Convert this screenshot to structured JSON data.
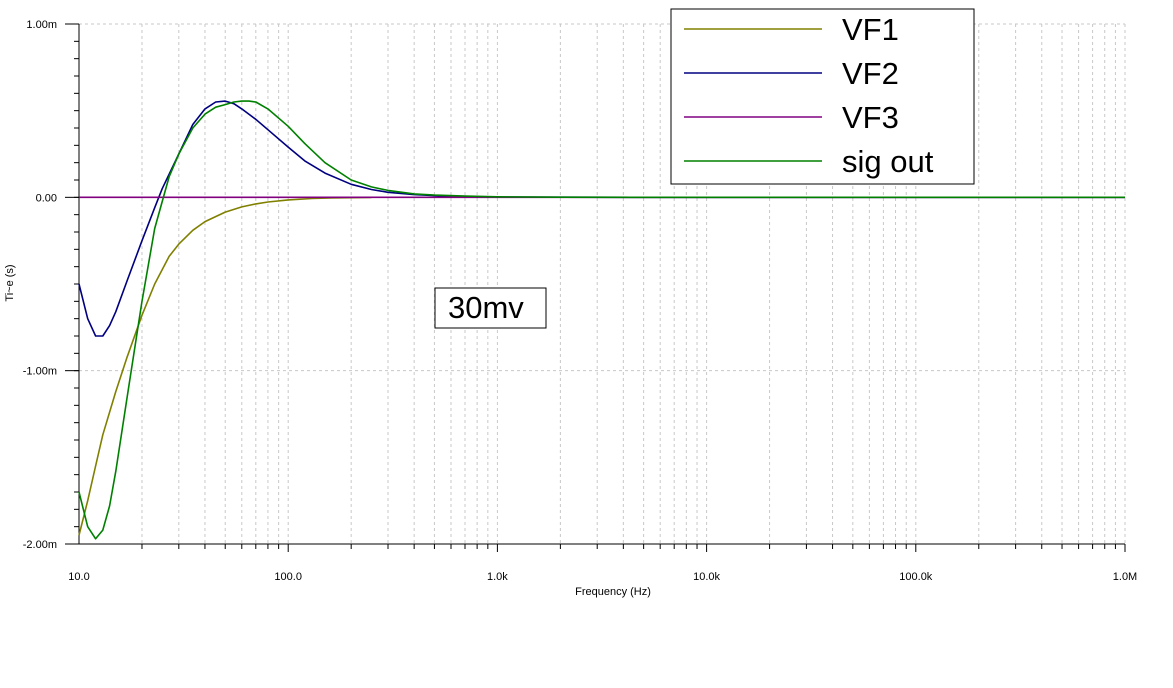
{
  "chart_data": {
    "type": "line",
    "title": "",
    "xlabel": "Frequency (Hz)",
    "ylabel": "Ti~e (s)",
    "xscale": "log",
    "xlim": [
      10,
      1000000
    ],
    "ylim": [
      -0.002,
      0.001
    ],
    "x_tick_labels": [
      "10.0",
      "100.0",
      "1.0k",
      "10.0k",
      "100.0k",
      "1.0M"
    ],
    "y_tick_labels": [
      "1.00m",
      "0.00",
      "-1.00m",
      "-2.00m"
    ],
    "grid": true,
    "legend_position": "top-right",
    "annotation": "30mv",
    "series": [
      {
        "name": "VF1",
        "color": "#808000",
        "x": [
          10,
          11,
          12,
          13,
          15,
          17,
          20,
          23,
          27,
          30,
          35,
          40,
          50,
          60,
          70,
          80,
          100,
          130,
          160,
          200,
          250
        ],
        "y": [
          -0.00195,
          -0.00175,
          -0.00155,
          -0.00137,
          -0.00112,
          -0.00092,
          -0.00068,
          -0.0005,
          -0.00034,
          -0.00027,
          -0.00019,
          -0.00014,
          -8.5e-05,
          -5.5e-05,
          -3.8e-05,
          -2.7e-05,
          -1.5e-05,
          -7e-06,
          -4e-06,
          -2e-06,
          -1e-06
        ]
      },
      {
        "name": "VF2",
        "color": "#000080",
        "x": [
          10,
          11,
          12,
          13,
          14,
          15,
          17,
          20,
          23,
          25,
          30,
          35,
          40,
          45,
          50,
          55,
          60,
          70,
          80,
          100,
          120,
          150,
          200,
          250,
          300,
          400,
          500,
          700,
          1000,
          2000,
          5000,
          10000,
          20000,
          50000,
          100000,
          200000,
          500000,
          1000000
        ],
        "y": [
          -0.0005,
          -0.0007,
          -0.0008,
          -0.0008,
          -0.00074,
          -0.00066,
          -0.00048,
          -0.00025,
          -6e-05,
          5e-05,
          0.00025,
          0.00042,
          0.00051,
          0.00055,
          0.000555,
          0.00054,
          0.00051,
          0.00045,
          0.00039,
          0.00029,
          0.00021,
          0.00014,
          7.5e-05,
          4.5e-05,
          2.9e-05,
          1.6e-05,
          1e-05,
          5e-06,
          2e-06,
          5e-07,
          0,
          0,
          0,
          0,
          0,
          0,
          0,
          0
        ]
      },
      {
        "name": "VF3",
        "color": "#800080",
        "x": [
          10,
          100,
          1000,
          10000,
          100000,
          1000000
        ],
        "y": [
          0,
          0,
          0,
          0,
          0,
          0
        ]
      },
      {
        "name": "sig out",
        "color": "#008000",
        "x": [
          10,
          11,
          12,
          13,
          14,
          15,
          17,
          20,
          23,
          27,
          30,
          35,
          40,
          45,
          50,
          55,
          60,
          65,
          70,
          80,
          100,
          120,
          150,
          200,
          250,
          300,
          400,
          500,
          700,
          1000,
          2000,
          5000,
          10000,
          20000,
          50000,
          100000,
          200000,
          500000,
          1000000
        ],
        "y": [
          -0.0017,
          -0.0019,
          -0.00197,
          -0.00192,
          -0.00178,
          -0.00158,
          -0.00115,
          -0.0006,
          -0.00018,
          0.00012,
          0.00025,
          0.0004,
          0.00048,
          0.00052,
          0.000535,
          0.00055,
          0.000555,
          0.000555,
          0.00055,
          0.00051,
          0.00041,
          0.00031,
          0.0002,
          0.0001,
          6e-05,
          4e-05,
          2e-05,
          1.3e-05,
          7e-06,
          3e-06,
          1e-06,
          0,
          0,
          0,
          0,
          0,
          0,
          0,
          0
        ]
      }
    ]
  }
}
